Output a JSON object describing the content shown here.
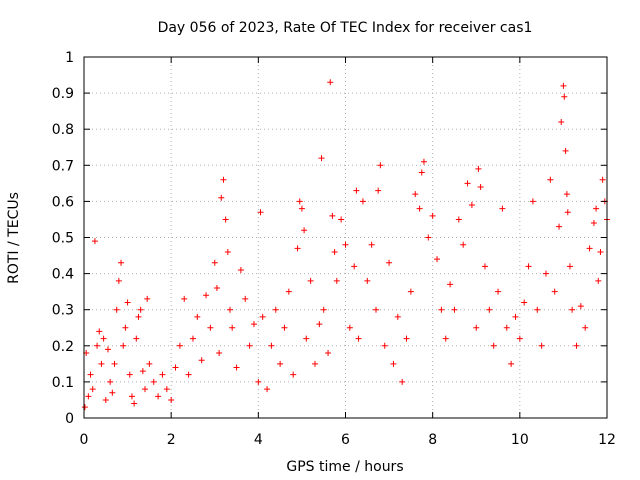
{
  "chart_data": {
    "type": "scatter",
    "title": "Day 056 of 2023, Rate Of TEC Index for receiver cas1",
    "xlabel": "GPS time / hours",
    "ylabel": "ROTI / TECUs",
    "xlim": [
      0,
      12
    ],
    "ylim": [
      0,
      1
    ],
    "grid": true,
    "marker": "+",
    "xticks": [
      0,
      2,
      4,
      6,
      8,
      10,
      12
    ],
    "xtick_labels": [
      "0",
      "2",
      "4",
      "6",
      "8",
      "10",
      "12"
    ],
    "yticks": [
      0,
      0.1,
      0.2,
      0.3,
      0.4,
      0.5,
      0.6,
      0.7,
      0.8,
      0.9,
      1
    ],
    "ytick_labels": [
      "0",
      "0.1",
      "0.2",
      "0.3",
      "0.4",
      "0.5",
      "0.6",
      "0.7",
      "0.8",
      "0.9",
      "1"
    ],
    "series": [
      {
        "name": "ROTI",
        "color": "#ff0000",
        "points": [
          [
            0.02,
            0.03
          ],
          [
            0.05,
            0.18
          ],
          [
            0.1,
            0.06
          ],
          [
            0.15,
            0.12
          ],
          [
            0.2,
            0.08
          ],
          [
            0.25,
            0.49
          ],
          [
            0.3,
            0.2
          ],
          [
            0.35,
            0.24
          ],
          [
            0.4,
            0.15
          ],
          [
            0.45,
            0.22
          ],
          [
            0.5,
            0.05
          ],
          [
            0.55,
            0.19
          ],
          [
            0.6,
            0.1
          ],
          [
            0.65,
            0.07
          ],
          [
            0.7,
            0.15
          ],
          [
            0.75,
            0.3
          ],
          [
            0.8,
            0.38
          ],
          [
            0.85,
            0.43
          ],
          [
            0.9,
            0.2
          ],
          [
            0.95,
            0.25
          ],
          [
            1.0,
            0.32
          ],
          [
            1.05,
            0.12
          ],
          [
            1.1,
            0.06
          ],
          [
            1.15,
            0.04
          ],
          [
            1.2,
            0.22
          ],
          [
            1.25,
            0.28
          ],
          [
            1.3,
            0.3
          ],
          [
            1.35,
            0.13
          ],
          [
            1.4,
            0.08
          ],
          [
            1.45,
            0.33
          ],
          [
            1.5,
            0.15
          ],
          [
            1.6,
            0.1
          ],
          [
            1.7,
            0.06
          ],
          [
            1.8,
            0.12
          ],
          [
            1.9,
            0.08
          ],
          [
            2.0,
            0.05
          ],
          [
            2.1,
            0.14
          ],
          [
            2.2,
            0.2
          ],
          [
            2.3,
            0.33
          ],
          [
            2.4,
            0.12
          ],
          [
            2.5,
            0.22
          ],
          [
            2.6,
            0.28
          ],
          [
            2.7,
            0.16
          ],
          [
            2.8,
            0.34
          ],
          [
            2.9,
            0.25
          ],
          [
            3.0,
            0.43
          ],
          [
            3.05,
            0.36
          ],
          [
            3.1,
            0.18
          ],
          [
            3.15,
            0.61
          ],
          [
            3.2,
            0.66
          ],
          [
            3.25,
            0.55
          ],
          [
            3.3,
            0.46
          ],
          [
            3.35,
            0.3
          ],
          [
            3.4,
            0.25
          ],
          [
            3.5,
            0.14
          ],
          [
            3.6,
            0.41
          ],
          [
            3.7,
            0.33
          ],
          [
            3.8,
            0.2
          ],
          [
            3.9,
            0.26
          ],
          [
            4.0,
            0.1
          ],
          [
            4.05,
            0.57
          ],
          [
            4.1,
            0.28
          ],
          [
            4.2,
            0.08
          ],
          [
            4.3,
            0.2
          ],
          [
            4.4,
            0.3
          ],
          [
            4.5,
            0.15
          ],
          [
            4.6,
            0.25
          ],
          [
            4.7,
            0.35
          ],
          [
            4.8,
            0.12
          ],
          [
            4.9,
            0.47
          ],
          [
            4.95,
            0.6
          ],
          [
            5.0,
            0.58
          ],
          [
            5.05,
            0.52
          ],
          [
            5.1,
            0.22
          ],
          [
            5.2,
            0.38
          ],
          [
            5.3,
            0.15
          ],
          [
            5.4,
            0.26
          ],
          [
            5.45,
            0.72
          ],
          [
            5.5,
            0.3
          ],
          [
            5.6,
            0.18
          ],
          [
            5.65,
            0.93
          ],
          [
            5.7,
            0.56
          ],
          [
            5.75,
            0.46
          ],
          [
            5.8,
            0.38
          ],
          [
            5.9,
            0.55
          ],
          [
            6.0,
            0.48
          ],
          [
            6.1,
            0.25
          ],
          [
            6.2,
            0.42
          ],
          [
            6.25,
            0.63
          ],
          [
            6.3,
            0.22
          ],
          [
            6.4,
            0.6
          ],
          [
            6.5,
            0.38
          ],
          [
            6.6,
            0.48
          ],
          [
            6.7,
            0.3
          ],
          [
            6.75,
            0.63
          ],
          [
            6.8,
            0.7
          ],
          [
            6.9,
            0.2
          ],
          [
            7.0,
            0.43
          ],
          [
            7.1,
            0.15
          ],
          [
            7.2,
            0.28
          ],
          [
            7.3,
            0.1
          ],
          [
            7.4,
            0.22
          ],
          [
            7.5,
            0.35
          ],
          [
            7.6,
            0.62
          ],
          [
            7.7,
            0.58
          ],
          [
            7.75,
            0.68
          ],
          [
            7.8,
            0.71
          ],
          [
            7.9,
            0.5
          ],
          [
            8.0,
            0.56
          ],
          [
            8.1,
            0.44
          ],
          [
            8.2,
            0.3
          ],
          [
            8.3,
            0.22
          ],
          [
            8.4,
            0.37
          ],
          [
            8.5,
            0.3
          ],
          [
            8.6,
            0.55
          ],
          [
            8.7,
            0.48
          ],
          [
            8.8,
            0.65
          ],
          [
            8.9,
            0.59
          ],
          [
            9.0,
            0.25
          ],
          [
            9.05,
            0.69
          ],
          [
            9.1,
            0.64
          ],
          [
            9.2,
            0.42
          ],
          [
            9.3,
            0.3
          ],
          [
            9.4,
            0.2
          ],
          [
            9.5,
            0.35
          ],
          [
            9.6,
            0.58
          ],
          [
            9.7,
            0.25
          ],
          [
            9.8,
            0.15
          ],
          [
            9.9,
            0.28
          ],
          [
            10.0,
            0.22
          ],
          [
            10.1,
            0.32
          ],
          [
            10.2,
            0.42
          ],
          [
            10.3,
            0.6
          ],
          [
            10.4,
            0.3
          ],
          [
            10.5,
            0.2
          ],
          [
            10.6,
            0.4
          ],
          [
            10.7,
            0.66
          ],
          [
            10.8,
            0.35
          ],
          [
            10.9,
            0.53
          ],
          [
            10.95,
            0.82
          ],
          [
            11.0,
            0.92
          ],
          [
            11.02,
            0.89
          ],
          [
            11.05,
            0.74
          ],
          [
            11.08,
            0.62
          ],
          [
            11.1,
            0.57
          ],
          [
            11.15,
            0.42
          ],
          [
            11.2,
            0.3
          ],
          [
            11.3,
            0.2
          ],
          [
            11.4,
            0.31
          ],
          [
            11.5,
            0.25
          ],
          [
            11.6,
            0.47
          ],
          [
            11.7,
            0.54
          ],
          [
            11.75,
            0.58
          ],
          [
            11.8,
            0.38
          ],
          [
            11.85,
            0.46
          ],
          [
            11.9,
            0.66
          ],
          [
            11.95,
            0.6
          ],
          [
            12.0,
            0.55
          ]
        ]
      }
    ]
  }
}
